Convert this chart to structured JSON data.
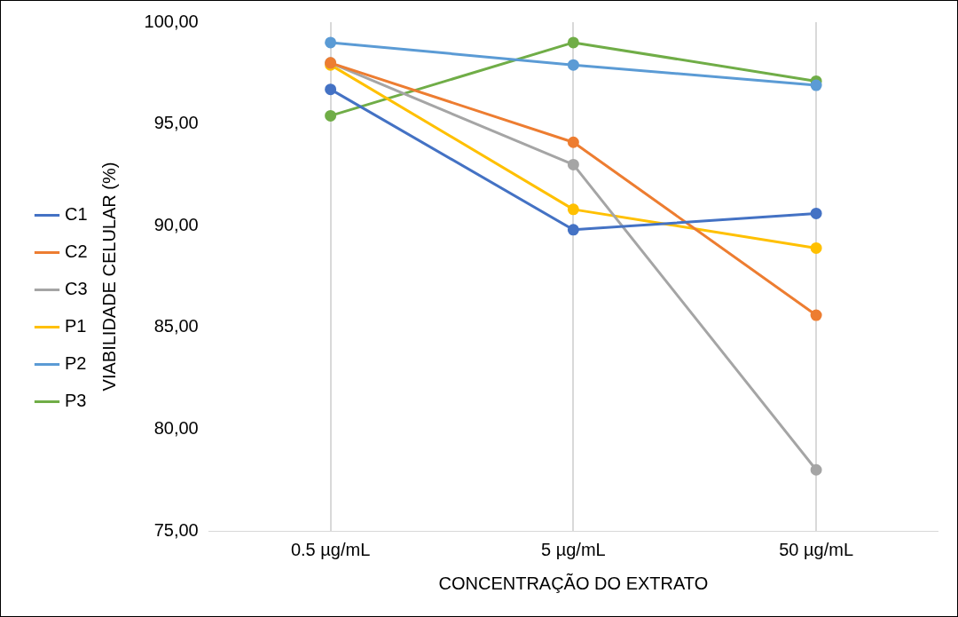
{
  "chart_data": {
    "type": "line",
    "xlabel": "CONCENTRAÇÃO DO EXTRATO",
    "ylabel": "VIABILIDADE CELULAR (%)",
    "categories": [
      "0.5 µg/mL",
      "5 µg/mL",
      "50 µg/mL"
    ],
    "series": [
      {
        "name": "C1",
        "color": "#4472c4",
        "values": [
          96.7,
          89.8,
          90.6
        ]
      },
      {
        "name": "C2",
        "color": "#ed7d31",
        "values": [
          98.0,
          94.1,
          85.6
        ]
      },
      {
        "name": "C3",
        "color": "#a5a5a5",
        "values": [
          98.0,
          93.0,
          78.0
        ]
      },
      {
        "name": "P1",
        "color": "#ffc000",
        "values": [
          97.9,
          90.8,
          88.9
        ]
      },
      {
        "name": "P2",
        "color": "#5b9bd5",
        "values": [
          99.0,
          97.9,
          96.9
        ]
      },
      {
        "name": "P3",
        "color": "#70ad47",
        "values": [
          95.4,
          99.0,
          97.1
        ]
      }
    ],
    "ylim": [
      75,
      100
    ],
    "yticks": [
      {
        "value": 75,
        "label": "75,00"
      },
      {
        "value": 80,
        "label": "80,00"
      },
      {
        "value": 85,
        "label": "85,00"
      },
      {
        "value": 90,
        "label": "90,00"
      },
      {
        "value": 95,
        "label": "95,00"
      },
      {
        "value": 100,
        "label": "100,00"
      }
    ],
    "grid": "x",
    "legend": "left",
    "marker": "circle",
    "line_style": "solid"
  }
}
